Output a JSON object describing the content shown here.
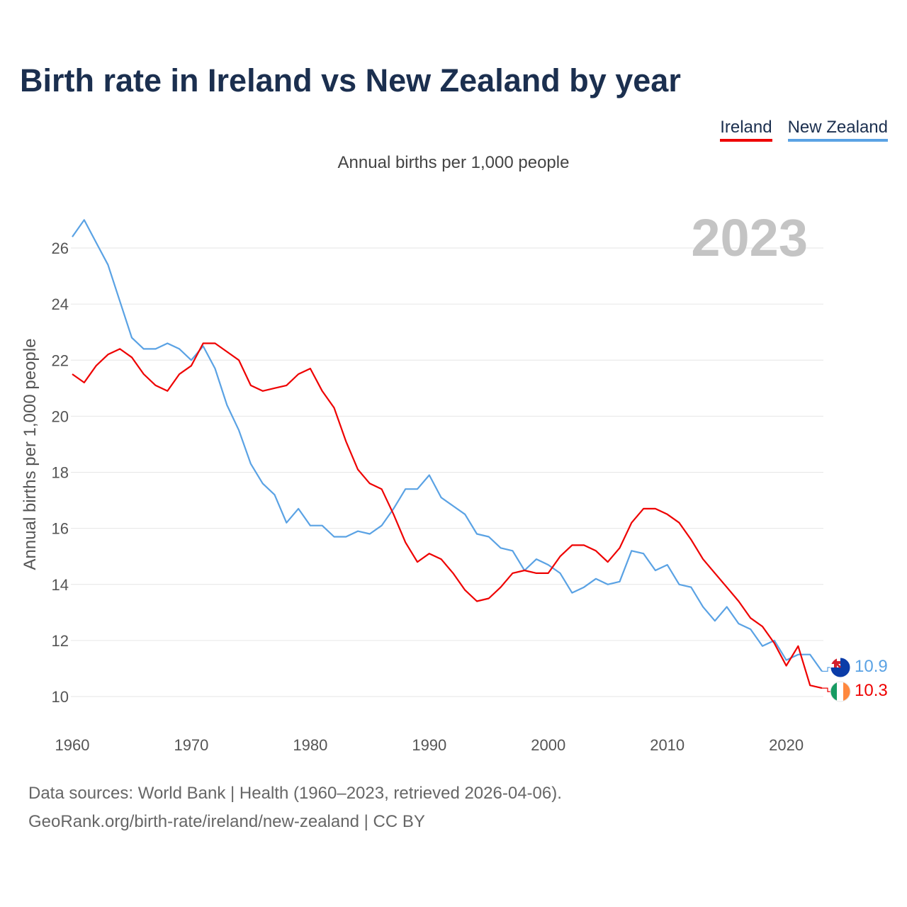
{
  "title": "Birth rate in Ireland vs New Zealand by year",
  "subtitle": "Annual births per 1,000 people",
  "legend": [
    {
      "label": "Ireland",
      "color": "#ee0000"
    },
    {
      "label": "New Zealand",
      "color": "#5aa2e4"
    }
  ],
  "footer": {
    "line1": "Data sources: World Bank | Health (1960–2023, retrieved 2026-04-06).",
    "line2": "GeoRank.org/birth-rate/ireland/new-zealand | CC BY"
  },
  "chart_data": {
    "type": "line",
    "title": "Birth rate in Ireland vs New Zealand by year",
    "xlabel": "",
    "ylabel": "Annual births per 1,000 people",
    "year_label": "2023",
    "xlim": [
      1960,
      2023
    ],
    "ylim": [
      9,
      27.5
    ],
    "x_ticks": [
      "1960",
      "1970",
      "1980",
      "1990",
      "2000",
      "2010",
      "2020"
    ],
    "y_ticks": [
      "10",
      "12",
      "14",
      "16",
      "18",
      "20",
      "22",
      "24",
      "26"
    ],
    "grid": true,
    "legend_position": "top-right",
    "x": [
      1960,
      1961,
      1962,
      1963,
      1964,
      1965,
      1966,
      1967,
      1968,
      1969,
      1970,
      1971,
      1972,
      1973,
      1974,
      1975,
      1976,
      1977,
      1978,
      1979,
      1980,
      1981,
      1982,
      1983,
      1984,
      1985,
      1986,
      1987,
      1988,
      1989,
      1990,
      1991,
      1992,
      1993,
      1994,
      1995,
      1996,
      1997,
      1998,
      1999,
      2000,
      2001,
      2002,
      2003,
      2004,
      2005,
      2006,
      2007,
      2008,
      2009,
      2010,
      2011,
      2012,
      2013,
      2014,
      2015,
      2016,
      2017,
      2018,
      2019,
      2020,
      2021,
      2022,
      2023
    ],
    "series": [
      {
        "name": "Ireland",
        "color": "#ee0000",
        "end_label": "10.3",
        "flag": "ireland-flag-icon",
        "values": [
          21.5,
          21.2,
          21.8,
          22.2,
          22.4,
          22.1,
          21.5,
          21.1,
          20.9,
          21.5,
          21.8,
          22.6,
          22.6,
          22.3,
          22.0,
          21.1,
          20.9,
          21.0,
          21.1,
          21.5,
          21.7,
          20.9,
          20.3,
          19.1,
          18.1,
          17.6,
          17.4,
          16.5,
          15.5,
          14.8,
          15.1,
          14.9,
          14.4,
          13.8,
          13.4,
          13.5,
          13.9,
          14.4,
          14.5,
          14.4,
          14.4,
          15.0,
          15.4,
          15.4,
          15.2,
          14.8,
          15.3,
          16.2,
          16.7,
          16.7,
          16.5,
          16.2,
          15.6,
          14.9,
          14.4,
          13.9,
          13.4,
          12.8,
          12.5,
          11.9,
          11.1,
          11.8,
          10.4,
          10.3
        ]
      },
      {
        "name": "New Zealand",
        "color": "#5aa2e4",
        "end_label": "10.9",
        "flag": "new-zealand-flag-icon",
        "values": [
          26.4,
          27.0,
          26.2,
          25.4,
          24.1,
          22.8,
          22.4,
          22.4,
          22.6,
          22.4,
          22.0,
          22.5,
          21.7,
          20.4,
          19.5,
          18.3,
          17.6,
          17.2,
          16.2,
          16.7,
          16.1,
          16.1,
          15.7,
          15.7,
          15.9,
          15.8,
          16.1,
          16.7,
          17.4,
          17.4,
          17.9,
          17.1,
          16.8,
          16.5,
          15.8,
          15.7,
          15.3,
          15.2,
          14.5,
          14.9,
          14.7,
          14.4,
          13.7,
          13.9,
          14.2,
          14.0,
          14.1,
          15.2,
          15.1,
          14.5,
          14.7,
          14.0,
          13.9,
          13.2,
          12.7,
          13.2,
          12.6,
          12.4,
          11.8,
          12.0,
          11.3,
          11.5,
          11.5,
          10.9
        ]
      }
    ]
  }
}
